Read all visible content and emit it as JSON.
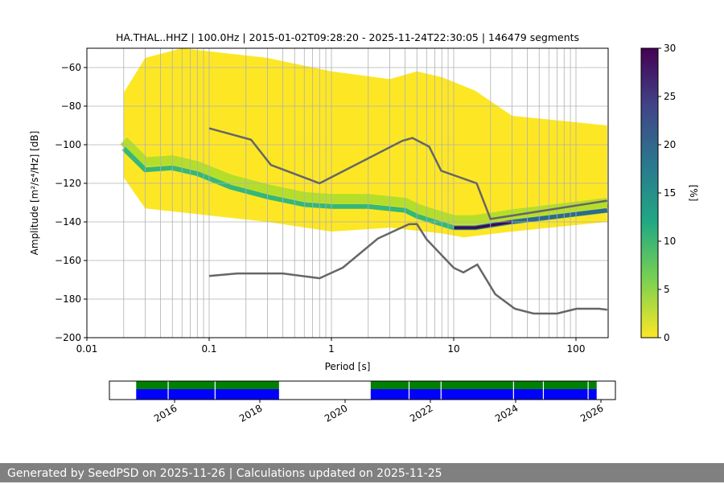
{
  "chart_data": [
    {
      "type": "heatmap",
      "title": "HA.THAL..HHZ | 100.0Hz | 2015-01-02T09:28:20 - 2025-11-24T22:30:05 | 146479 segments",
      "xlabel": "Period [s]",
      "ylabel": "Amplitude [m²/s⁴/Hz] [dB]",
      "xscale": "log",
      "xlim": [
        0.01,
        180
      ],
      "ylim": [
        -200,
        -50
      ],
      "xticks": [
        {
          "v": 0.01,
          "l": "0.01"
        },
        {
          "v": 0.1,
          "l": "0.1"
        },
        {
          "v": 1,
          "l": "1"
        },
        {
          "v": 10,
          "l": "10"
        },
        {
          "v": 100,
          "l": "100"
        }
      ],
      "yticks": [
        -60,
        -80,
        -100,
        -120,
        -140,
        -160,
        -180,
        -200
      ],
      "grid": true,
      "colorbar": {
        "label": "[%]",
        "range": [
          0,
          30
        ],
        "ticks": [
          0,
          5,
          10,
          15,
          20,
          25,
          30
        ]
      },
      "density_upper_envelope": [
        [
          0.02,
          -73
        ],
        [
          0.03,
          -55
        ],
        [
          0.06,
          -50
        ],
        [
          0.3,
          -55
        ],
        [
          1,
          -62
        ],
        [
          3,
          -66
        ],
        [
          5,
          -62
        ],
        [
          8,
          -65
        ],
        [
          15,
          -72
        ],
        [
          30,
          -85
        ],
        [
          180,
          -90
        ]
      ],
      "density_lower_envelope": [
        [
          0.02,
          -117
        ],
        [
          0.03,
          -133
        ],
        [
          0.3,
          -140
        ],
        [
          1,
          -145
        ],
        [
          3,
          -143
        ],
        [
          8,
          -146
        ],
        [
          12,
          -148
        ],
        [
          30,
          -145
        ],
        [
          180,
          -140
        ]
      ],
      "mode_line": [
        [
          0.02,
          -102
        ],
        [
          0.03,
          -113
        ],
        [
          0.05,
          -112
        ],
        [
          0.08,
          -115
        ],
        [
          0.15,
          -122
        ],
        [
          0.3,
          -127
        ],
        [
          0.6,
          -131
        ],
        [
          1,
          -132
        ],
        [
          2,
          -132
        ],
        [
          4,
          -134
        ],
        [
          5,
          -137
        ],
        [
          7,
          -140
        ],
        [
          10,
          -143
        ],
        [
          15,
          -143
        ],
        [
          30,
          -140
        ],
        [
          100,
          -136
        ],
        [
          180,
          -134
        ]
      ],
      "nhnm": [
        [
          0.1,
          -91.5
        ],
        [
          0.22,
          -97.4
        ],
        [
          0.32,
          -110.5
        ],
        [
          0.8,
          -120
        ],
        [
          3.8,
          -98
        ],
        [
          4.6,
          -96.5
        ],
        [
          6.3,
          -101
        ],
        [
          7.9,
          -113.5
        ],
        [
          15.4,
          -120
        ],
        [
          20,
          -138.5
        ],
        [
          180,
          -129
        ]
      ],
      "nlnm": [
        [
          0.1,
          -168
        ],
        [
          0.17,
          -166.7
        ],
        [
          0.4,
          -166.7
        ],
        [
          0.8,
          -169.2
        ],
        [
          1.24,
          -163.7
        ],
        [
          2.4,
          -148.6
        ],
        [
          4.3,
          -141.2
        ],
        [
          5,
          -141.1
        ],
        [
          6,
          -149
        ],
        [
          10,
          -163.8
        ],
        [
          12,
          -166.2
        ],
        [
          15.6,
          -162.1
        ],
        [
          21.9,
          -177.5
        ],
        [
          31.6,
          -185
        ],
        [
          45,
          -187.5
        ],
        [
          70,
          -187.5
        ],
        [
          101,
          -185
        ],
        [
          154,
          -185
        ],
        [
          180,
          -185.5
        ]
      ]
    },
    {
      "type": "timeline",
      "xlim": [
        2014.8,
        2026.5
      ],
      "xticks": [
        "2016",
        "2018",
        "2020",
        "2022",
        "2024",
        "2026"
      ],
      "coverage": [
        [
          2015.1,
          2018.45
        ],
        [
          2020.6,
          2025.9
        ]
      ],
      "gaps": [
        2015.85,
        2016.95,
        2021.5,
        2022.25,
        2023.95,
        2024.65,
        2025.7
      ]
    }
  ],
  "footer": "Generated by SeedPSD on 2025-11-26 | Calculations updated on 2025-11-25",
  "colors": {
    "nm": "#666666",
    "cover_top": "#008000",
    "cover_bottom": "#0000ff"
  }
}
